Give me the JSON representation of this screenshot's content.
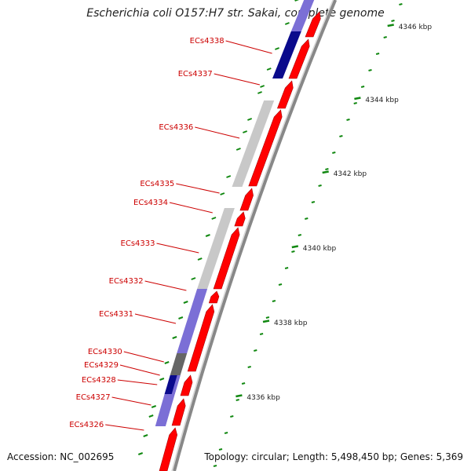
{
  "title": "Escherichia coli O157:H7 str. Sakai, complete genome",
  "accession": "Accession: NC_002695",
  "topology": "Topology: circular; Length: 5,498,450 bp; Genes: 5,369",
  "colors": {
    "forward_cds": "#ff0000",
    "gene_light": "#c8c8c8",
    "gene_dark": "#666666",
    "gene_blue": "#7b6fd6",
    "gene_navy": "#0a0a8c",
    "label": "#cc0000",
    "tick": "#118811",
    "backbone": "#888888"
  },
  "ticks": [
    {
      "label": "4336 kbp"
    },
    {
      "label": "4338 kbp"
    },
    {
      "label": "4340 kbp"
    },
    {
      "label": "4342 kbp"
    },
    {
      "label": "4344 kbp"
    },
    {
      "label": "4346 kbp"
    }
  ],
  "genes": [
    {
      "label": "ECs4326"
    },
    {
      "label": "ECs4327"
    },
    {
      "label": "ECs4328"
    },
    {
      "label": "ECs4329"
    },
    {
      "label": "ECs4330"
    },
    {
      "label": "ECs4331"
    },
    {
      "label": "ECs4332"
    },
    {
      "label": "ECs4333"
    },
    {
      "label": "ECs4334"
    },
    {
      "label": "ECs4335"
    },
    {
      "label": "ECs4336"
    },
    {
      "label": "ECs4337"
    },
    {
      "label": "ECs4338"
    }
  ]
}
